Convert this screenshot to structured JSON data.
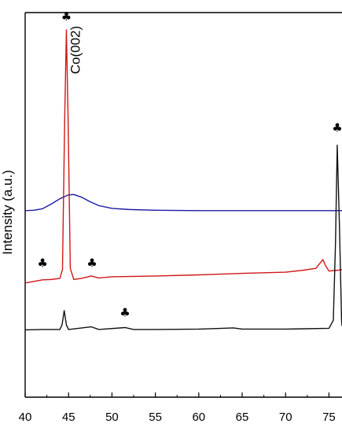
{
  "chart_data": {
    "type": "line",
    "xlabel": "",
    "ylabel": "Intensity (a.u.)",
    "xlim": [
      40,
      76.5
    ],
    "ylim": [
      0,
      100
    ],
    "x_ticks": [
      "40",
      "45",
      "50",
      "55",
      "60",
      "65",
      "70",
      "75"
    ],
    "y_ticks_shown": false,
    "grid": false,
    "series": [
      {
        "color": "#1a1aa8",
        "points": [
          [
            40,
            48.5
          ],
          [
            41,
            48.6
          ],
          [
            42,
            49.0
          ],
          [
            43,
            50.2
          ],
          [
            44,
            51.6
          ],
          [
            45,
            52.6
          ],
          [
            45.6,
            52.7
          ],
          [
            46.5,
            52.0
          ],
          [
            47.5,
            50.8
          ],
          [
            48.5,
            49.8
          ],
          [
            50,
            49.1
          ],
          [
            52,
            48.8
          ],
          [
            55,
            48.6
          ],
          [
            60,
            48.5
          ],
          [
            65,
            48.5
          ],
          [
            70,
            48.5
          ],
          [
            75,
            48.5
          ],
          [
            76.5,
            48.5
          ]
        ]
      },
      {
        "color": "#d01818",
        "points": [
          [
            40,
            29.7
          ],
          [
            41,
            30.1
          ],
          [
            42,
            30.5
          ],
          [
            43,
            30.6
          ],
          [
            44,
            30.9
          ],
          [
            44.3,
            33.2
          ],
          [
            44.55,
            72.0
          ],
          [
            44.75,
            95.5
          ],
          [
            44.95,
            72.0
          ],
          [
            45.2,
            33.5
          ],
          [
            45.6,
            30.6
          ],
          [
            46.5,
            30.9
          ],
          [
            47.6,
            31.5
          ],
          [
            48.5,
            31.0
          ],
          [
            50,
            31.3
          ],
          [
            55,
            31.5
          ],
          [
            60,
            31.8
          ],
          [
            65,
            32.2
          ],
          [
            70,
            32.5
          ],
          [
            72,
            33.0
          ],
          [
            73.5,
            33.5
          ],
          [
            74.3,
            35.8
          ],
          [
            74.6,
            34.2
          ],
          [
            75,
            32.8
          ],
          [
            76,
            33.0
          ],
          [
            76.5,
            33.2
          ]
        ]
      },
      {
        "color": "#111111",
        "points": [
          [
            40,
            17.5
          ],
          [
            42,
            17.6
          ],
          [
            44,
            17.6
          ],
          [
            44.25,
            18.8
          ],
          [
            44.5,
            22.5
          ],
          [
            44.75,
            18.8
          ],
          [
            45,
            17.6
          ],
          [
            47.6,
            18.3
          ],
          [
            48.5,
            17.6
          ],
          [
            51.5,
            18.1
          ],
          [
            52.5,
            17.6
          ],
          [
            55,
            17.6
          ],
          [
            60,
            17.7
          ],
          [
            64,
            18.0
          ],
          [
            65,
            17.7
          ],
          [
            70,
            17.7
          ],
          [
            75,
            17.9
          ],
          [
            75.5,
            20.0
          ],
          [
            75.75,
            40.0
          ],
          [
            75.95,
            65.5
          ],
          [
            76.2,
            45.0
          ],
          [
            76.45,
            20.0
          ],
          [
            76.5,
            18.5
          ]
        ]
      }
    ],
    "annotations": [
      {
        "text": "♣",
        "x": 44.75,
        "y": 98.0
      },
      {
        "text": "Co(002)",
        "x": 46.3,
        "y": 84.0,
        "rotation": -90
      },
      {
        "text": "♣",
        "x": 42.0,
        "y": 33.8
      },
      {
        "text": "♣",
        "x": 47.7,
        "y": 33.8
      },
      {
        "text": "♣",
        "x": 51.5,
        "y": 21.0
      },
      {
        "text": "♣",
        "x": 75.95,
        "y": 69.0
      }
    ]
  }
}
